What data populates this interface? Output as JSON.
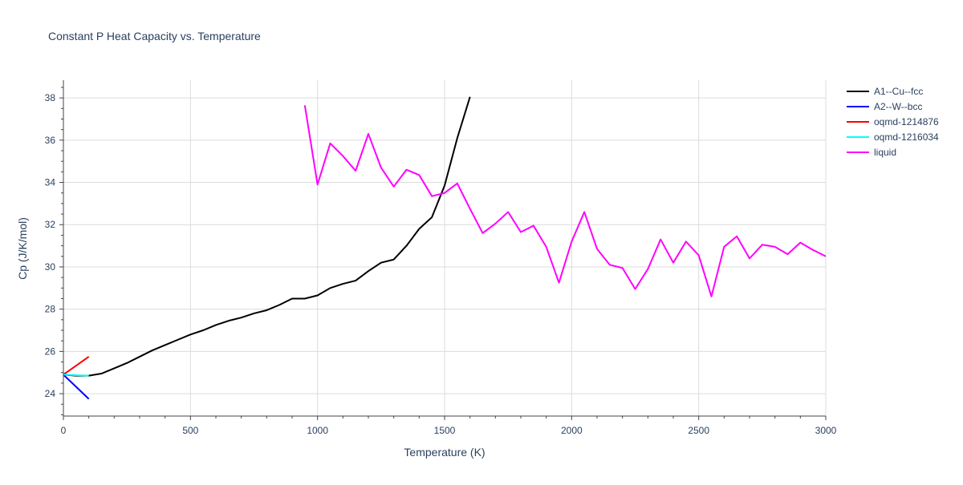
{
  "chart_data": {
    "type": "line",
    "title": "Constant P Heat Capacity vs. Temperature",
    "xlabel": "Temperature (K)",
    "ylabel": "Cp (J/K/mol)",
    "xlim": [
      0,
      3000
    ],
    "ylim": [
      22.94,
      38.84
    ],
    "xticks": [
      0,
      500,
      1000,
      1500,
      2000,
      2500,
      3000
    ],
    "yticks": [
      24,
      26,
      28,
      30,
      32,
      34,
      36,
      38
    ],
    "grid": true,
    "legend": "right",
    "series": [
      {
        "name": "A1--Cu--fcc",
        "color": "#000000",
        "x": [
          0,
          50,
          100,
          150,
          200,
          250,
          300,
          350,
          400,
          450,
          500,
          550,
          600,
          650,
          700,
          750,
          800,
          850,
          900,
          950,
          1000,
          1050,
          1100,
          1150,
          1200,
          1250,
          1300,
          1350,
          1400,
          1450,
          1500,
          1550,
          1600
        ],
        "y": [
          24.9,
          24.85,
          24.85,
          24.95,
          25.2,
          25.45,
          25.75,
          26.05,
          26.3,
          26.55,
          26.8,
          27.0,
          27.25,
          27.45,
          27.6,
          27.8,
          27.95,
          28.2,
          28.5,
          28.5,
          28.65,
          29.0,
          29.2,
          29.35,
          29.8,
          30.2,
          30.35,
          31.0,
          31.8,
          32.35,
          33.85,
          36.1,
          38.05
        ]
      },
      {
        "name": "A2--W--bcc",
        "color": "#0000ff",
        "x": [
          0,
          100
        ],
        "y": [
          24.9,
          23.75
        ]
      },
      {
        "name": "oqmd-1214876",
        "color": "#ff0000",
        "x": [
          0,
          100
        ],
        "y": [
          24.9,
          25.75
        ]
      },
      {
        "name": "oqmd-1216034",
        "color": "#00ffff",
        "x": [
          0,
          100
        ],
        "y": [
          24.9,
          24.85
        ]
      },
      {
        "name": "liquid",
        "color": "#ff00ff",
        "x": [
          950,
          1000,
          1050,
          1100,
          1150,
          1200,
          1250,
          1300,
          1350,
          1400,
          1450,
          1500,
          1550,
          1600,
          1650,
          1700,
          1750,
          1800,
          1850,
          1900,
          1950,
          2000,
          2050,
          2100,
          2150,
          2200,
          2250,
          2300,
          2350,
          2400,
          2450,
          2500,
          2550,
          2600,
          2650,
          2700,
          2750,
          2800,
          2850,
          2900,
          2950,
          3000
        ],
        "y": [
          37.65,
          33.9,
          35.85,
          35.25,
          34.55,
          36.3,
          34.7,
          33.8,
          34.6,
          34.35,
          33.35,
          33.5,
          33.95,
          32.75,
          31.6,
          32.05,
          32.6,
          31.65,
          31.95,
          30.95,
          29.25,
          31.2,
          32.6,
          30.85,
          30.1,
          29.95,
          28.95,
          29.9,
          31.3,
          30.2,
          31.2,
          30.55,
          28.6,
          30.95,
          31.45,
          30.4,
          31.05,
          30.95,
          30.6,
          31.15,
          30.8,
          30.5
        ]
      }
    ]
  }
}
